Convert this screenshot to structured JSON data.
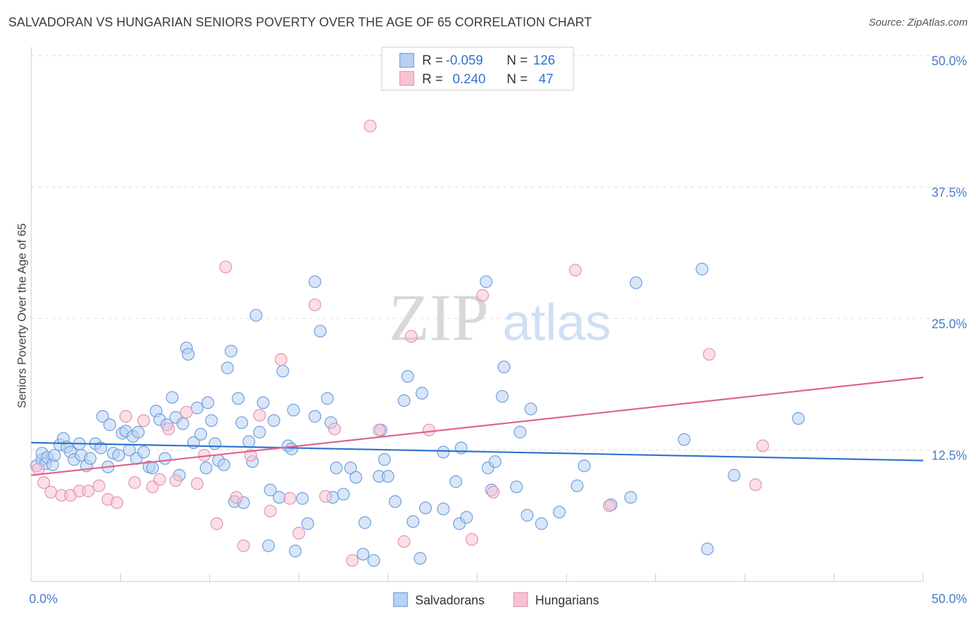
{
  "header": {
    "title": "SALVADORAN VS HUNGARIAN SENIORS POVERTY OVER THE AGE OF 65 CORRELATION CHART",
    "source": "Source: ZipAtlas.com"
  },
  "watermark": {
    "zip": "ZIP",
    "atlas": "atlas"
  },
  "colors": {
    "blue_fill": "#b8d1f2",
    "blue_stroke": "#6f9fdc",
    "blue_line": "#2f72cf",
    "pink_fill": "#f7c3d2",
    "pink_stroke": "#e693ae",
    "pink_line": "#e0628f",
    "tick_text": "#4a7cc9",
    "grid": "#dddddd"
  },
  "legend": {
    "rows": [
      {
        "r_label": "R =",
        "r_value": "-0.059",
        "n_label": "N =",
        "n_value": "126",
        "color": "blue"
      },
      {
        "r_label": "R =",
        "r_value": "0.240",
        "n_label": "N =",
        "n_value": "47",
        "color": "pink"
      }
    ]
  },
  "chart_data": {
    "type": "scatter",
    "title": "SALVADORAN VS HUNGARIAN SENIORS POVERTY OVER THE AGE OF 65 CORRELATION CHART",
    "xlabel": "",
    "ylabel": "Seniors Poverty Over the Age of 65",
    "xlim": [
      0,
      50
    ],
    "ylim": [
      0,
      50
    ],
    "x_tick_labels": [
      "0.0%",
      "50.0%"
    ],
    "y_ticks": [
      12.5,
      25.0,
      37.5,
      50.0
    ],
    "y_tick_labels": [
      "12.5%",
      "25.0%",
      "37.5%",
      "50.0%"
    ],
    "grid": true,
    "legend_position": "top-center",
    "series": [
      {
        "name": "Salvadorans",
        "color": "#b8d1f2",
        "trend": {
          "x": [
            0,
            50
          ],
          "y": [
            13.2,
            11.5
          ]
        },
        "points": [
          [
            0.3,
            11.0
          ],
          [
            0.6,
            11.6
          ],
          [
            0.6,
            12.2
          ],
          [
            0.8,
            11.2
          ],
          [
            0.9,
            11.8
          ],
          [
            1.2,
            11.1
          ],
          [
            1.3,
            12.0
          ],
          [
            1.6,
            13.0
          ],
          [
            1.8,
            13.6
          ],
          [
            2.0,
            12.8
          ],
          [
            2.2,
            12.3
          ],
          [
            2.4,
            11.6
          ],
          [
            2.7,
            13.1
          ],
          [
            2.8,
            12.0
          ],
          [
            3.1,
            11.0
          ],
          [
            3.3,
            11.7
          ],
          [
            3.6,
            13.1
          ],
          [
            3.9,
            12.7
          ],
          [
            4.0,
            15.7
          ],
          [
            4.3,
            10.9
          ],
          [
            4.4,
            14.9
          ],
          [
            4.6,
            12.2
          ],
          [
            4.9,
            12.0
          ],
          [
            5.1,
            14.1
          ],
          [
            5.3,
            14.3
          ],
          [
            5.5,
            12.5
          ],
          [
            5.7,
            13.8
          ],
          [
            5.9,
            11.7
          ],
          [
            6.0,
            14.2
          ],
          [
            6.3,
            12.3
          ],
          [
            6.6,
            10.9
          ],
          [
            6.8,
            10.8
          ],
          [
            7.0,
            16.2
          ],
          [
            7.2,
            15.4
          ],
          [
            7.5,
            11.7
          ],
          [
            7.6,
            14.9
          ],
          [
            7.9,
            17.5
          ],
          [
            8.1,
            15.6
          ],
          [
            8.3,
            10.1
          ],
          [
            8.5,
            15.0
          ],
          [
            8.7,
            22.2
          ],
          [
            8.8,
            21.6
          ],
          [
            9.1,
            13.2
          ],
          [
            9.3,
            16.5
          ],
          [
            9.5,
            14.0
          ],
          [
            9.8,
            10.8
          ],
          [
            9.9,
            17.0
          ],
          [
            10.1,
            15.3
          ],
          [
            10.3,
            13.1
          ],
          [
            10.5,
            11.5
          ],
          [
            10.8,
            11.1
          ],
          [
            11.0,
            20.3
          ],
          [
            11.2,
            21.9
          ],
          [
            11.4,
            7.6
          ],
          [
            11.6,
            17.4
          ],
          [
            11.8,
            15.1
          ],
          [
            11.9,
            7.5
          ],
          [
            12.2,
            13.3
          ],
          [
            12.4,
            11.4
          ],
          [
            12.6,
            25.3
          ],
          [
            12.8,
            14.2
          ],
          [
            13.0,
            17.0
          ],
          [
            13.3,
            3.4
          ],
          [
            13.4,
            8.7
          ],
          [
            13.6,
            15.3
          ],
          [
            13.9,
            8.0
          ],
          [
            14.1,
            20.0
          ],
          [
            14.4,
            12.9
          ],
          [
            14.6,
            12.6
          ],
          [
            14.7,
            16.3
          ],
          [
            14.8,
            2.9
          ],
          [
            15.2,
            7.9
          ],
          [
            15.5,
            5.5
          ],
          [
            15.9,
            28.5
          ],
          [
            15.9,
            15.7
          ],
          [
            16.2,
            23.8
          ],
          [
            16.6,
            17.4
          ],
          [
            16.8,
            15.1
          ],
          [
            16.9,
            8.0
          ],
          [
            17.1,
            10.8
          ],
          [
            17.5,
            8.3
          ],
          [
            17.9,
            10.8
          ],
          [
            18.2,
            9.9
          ],
          [
            18.6,
            2.6
          ],
          [
            18.7,
            5.6
          ],
          [
            19.2,
            2.0
          ],
          [
            19.5,
            10.0
          ],
          [
            19.6,
            14.4
          ],
          [
            19.8,
            11.6
          ],
          [
            20.0,
            10.0
          ],
          [
            20.4,
            7.6
          ],
          [
            20.9,
            17.2
          ],
          [
            21.1,
            19.5
          ],
          [
            21.4,
            5.7
          ],
          [
            21.8,
            2.2
          ],
          [
            21.9,
            17.9
          ],
          [
            22.1,
            7.0
          ],
          [
            23.1,
            12.3
          ],
          [
            23.1,
            6.9
          ],
          [
            23.8,
            9.5
          ],
          [
            24.0,
            5.5
          ],
          [
            24.1,
            12.7
          ],
          [
            24.4,
            6.1
          ],
          [
            25.6,
            10.8
          ],
          [
            25.5,
            28.5
          ],
          [
            25.8,
            8.7
          ],
          [
            26.0,
            11.4
          ],
          [
            26.4,
            17.6
          ],
          [
            26.5,
            20.4
          ],
          [
            27.2,
            9.0
          ],
          [
            27.4,
            14.2
          ],
          [
            27.8,
            6.3
          ],
          [
            28.0,
            16.4
          ],
          [
            28.6,
            5.5
          ],
          [
            29.6,
            6.6
          ],
          [
            30.6,
            9.1
          ],
          [
            31.0,
            11.0
          ],
          [
            32.5,
            7.3
          ],
          [
            33.6,
            8.0
          ],
          [
            33.9,
            28.4
          ],
          [
            36.6,
            13.5
          ],
          [
            37.6,
            29.7
          ],
          [
            37.9,
            3.1
          ],
          [
            39.4,
            10.1
          ],
          [
            43.0,
            15.5
          ]
        ]
      },
      {
        "name": "Hungarians",
        "color": "#f7c3d2",
        "trend": {
          "x": [
            0,
            50
          ],
          "y": [
            10.1,
            19.4
          ]
        },
        "points": [
          [
            0.4,
            10.7
          ],
          [
            0.7,
            9.4
          ],
          [
            1.1,
            8.5
          ],
          [
            1.7,
            8.2
          ],
          [
            2.2,
            8.2
          ],
          [
            2.7,
            8.6
          ],
          [
            3.2,
            8.6
          ],
          [
            3.8,
            9.1
          ],
          [
            4.3,
            7.8
          ],
          [
            4.8,
            7.5
          ],
          [
            5.3,
            15.7
          ],
          [
            5.8,
            9.4
          ],
          [
            6.3,
            15.3
          ],
          [
            6.8,
            9.0
          ],
          [
            7.2,
            9.7
          ],
          [
            7.7,
            14.5
          ],
          [
            8.1,
            9.6
          ],
          [
            8.7,
            16.1
          ],
          [
            9.3,
            9.3
          ],
          [
            9.7,
            12.0
          ],
          [
            10.4,
            5.5
          ],
          [
            10.9,
            29.9
          ],
          [
            11.5,
            8.0
          ],
          [
            11.9,
            3.4
          ],
          [
            12.3,
            12.0
          ],
          [
            12.8,
            15.8
          ],
          [
            13.4,
            6.7
          ],
          [
            14.0,
            21.1
          ],
          [
            14.5,
            7.9
          ],
          [
            15.0,
            4.6
          ],
          [
            15.9,
            26.3
          ],
          [
            16.5,
            8.1
          ],
          [
            17.0,
            14.5
          ],
          [
            18.0,
            2.0
          ],
          [
            19.0,
            43.3
          ],
          [
            19.5,
            14.4
          ],
          [
            20.9,
            3.8
          ],
          [
            21.3,
            23.3
          ],
          [
            22.3,
            14.4
          ],
          [
            24.7,
            4.0
          ],
          [
            25.3,
            27.2
          ],
          [
            25.9,
            8.5
          ],
          [
            30.5,
            29.6
          ],
          [
            32.4,
            7.2
          ],
          [
            38.0,
            21.6
          ],
          [
            40.6,
            9.2
          ],
          [
            41.0,
            12.9
          ]
        ]
      }
    ]
  },
  "bottom_legend": {
    "items": [
      {
        "label": "Salvadorans",
        "color": "blue"
      },
      {
        "label": "Hungarians",
        "color": "pink"
      }
    ]
  }
}
